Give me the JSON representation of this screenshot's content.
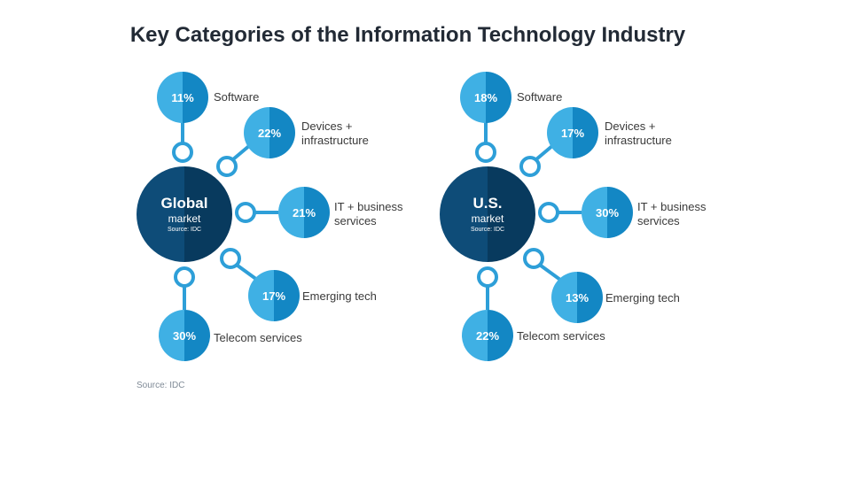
{
  "title": "Key Categories of the Information Technology Industry",
  "footnote": "Source: IDC",
  "colors": {
    "bubble_light": "#3fb0e4",
    "bubble_dark": "#1387c4",
    "hub_light": "#0e4c78",
    "hub_dark": "#083a5e",
    "connector": "#2e9fd8"
  },
  "global": {
    "hub_title": "Global",
    "hub_sub": "market",
    "hub_source": "Source: IDC",
    "categories": [
      {
        "value": "11%",
        "label": "Software"
      },
      {
        "value": "22%",
        "label": "Devices +\ninfrastructure"
      },
      {
        "value": "21%",
        "label": "IT + business\nservices"
      },
      {
        "value": "17%",
        "label": "Emerging tech"
      },
      {
        "value": "30%",
        "label": "Telecom services"
      }
    ]
  },
  "us": {
    "hub_title": "U.S.",
    "hub_sub": "market",
    "hub_source": "Source: IDC",
    "categories": [
      {
        "value": "18%",
        "label": "Software"
      },
      {
        "value": "17%",
        "label": "Devices +\ninfrastructure"
      },
      {
        "value": "30%",
        "label": "IT + business\nservices"
      },
      {
        "value": "13%",
        "label": "Emerging tech"
      },
      {
        "value": "22%",
        "label": "Telecom services"
      }
    ]
  }
}
